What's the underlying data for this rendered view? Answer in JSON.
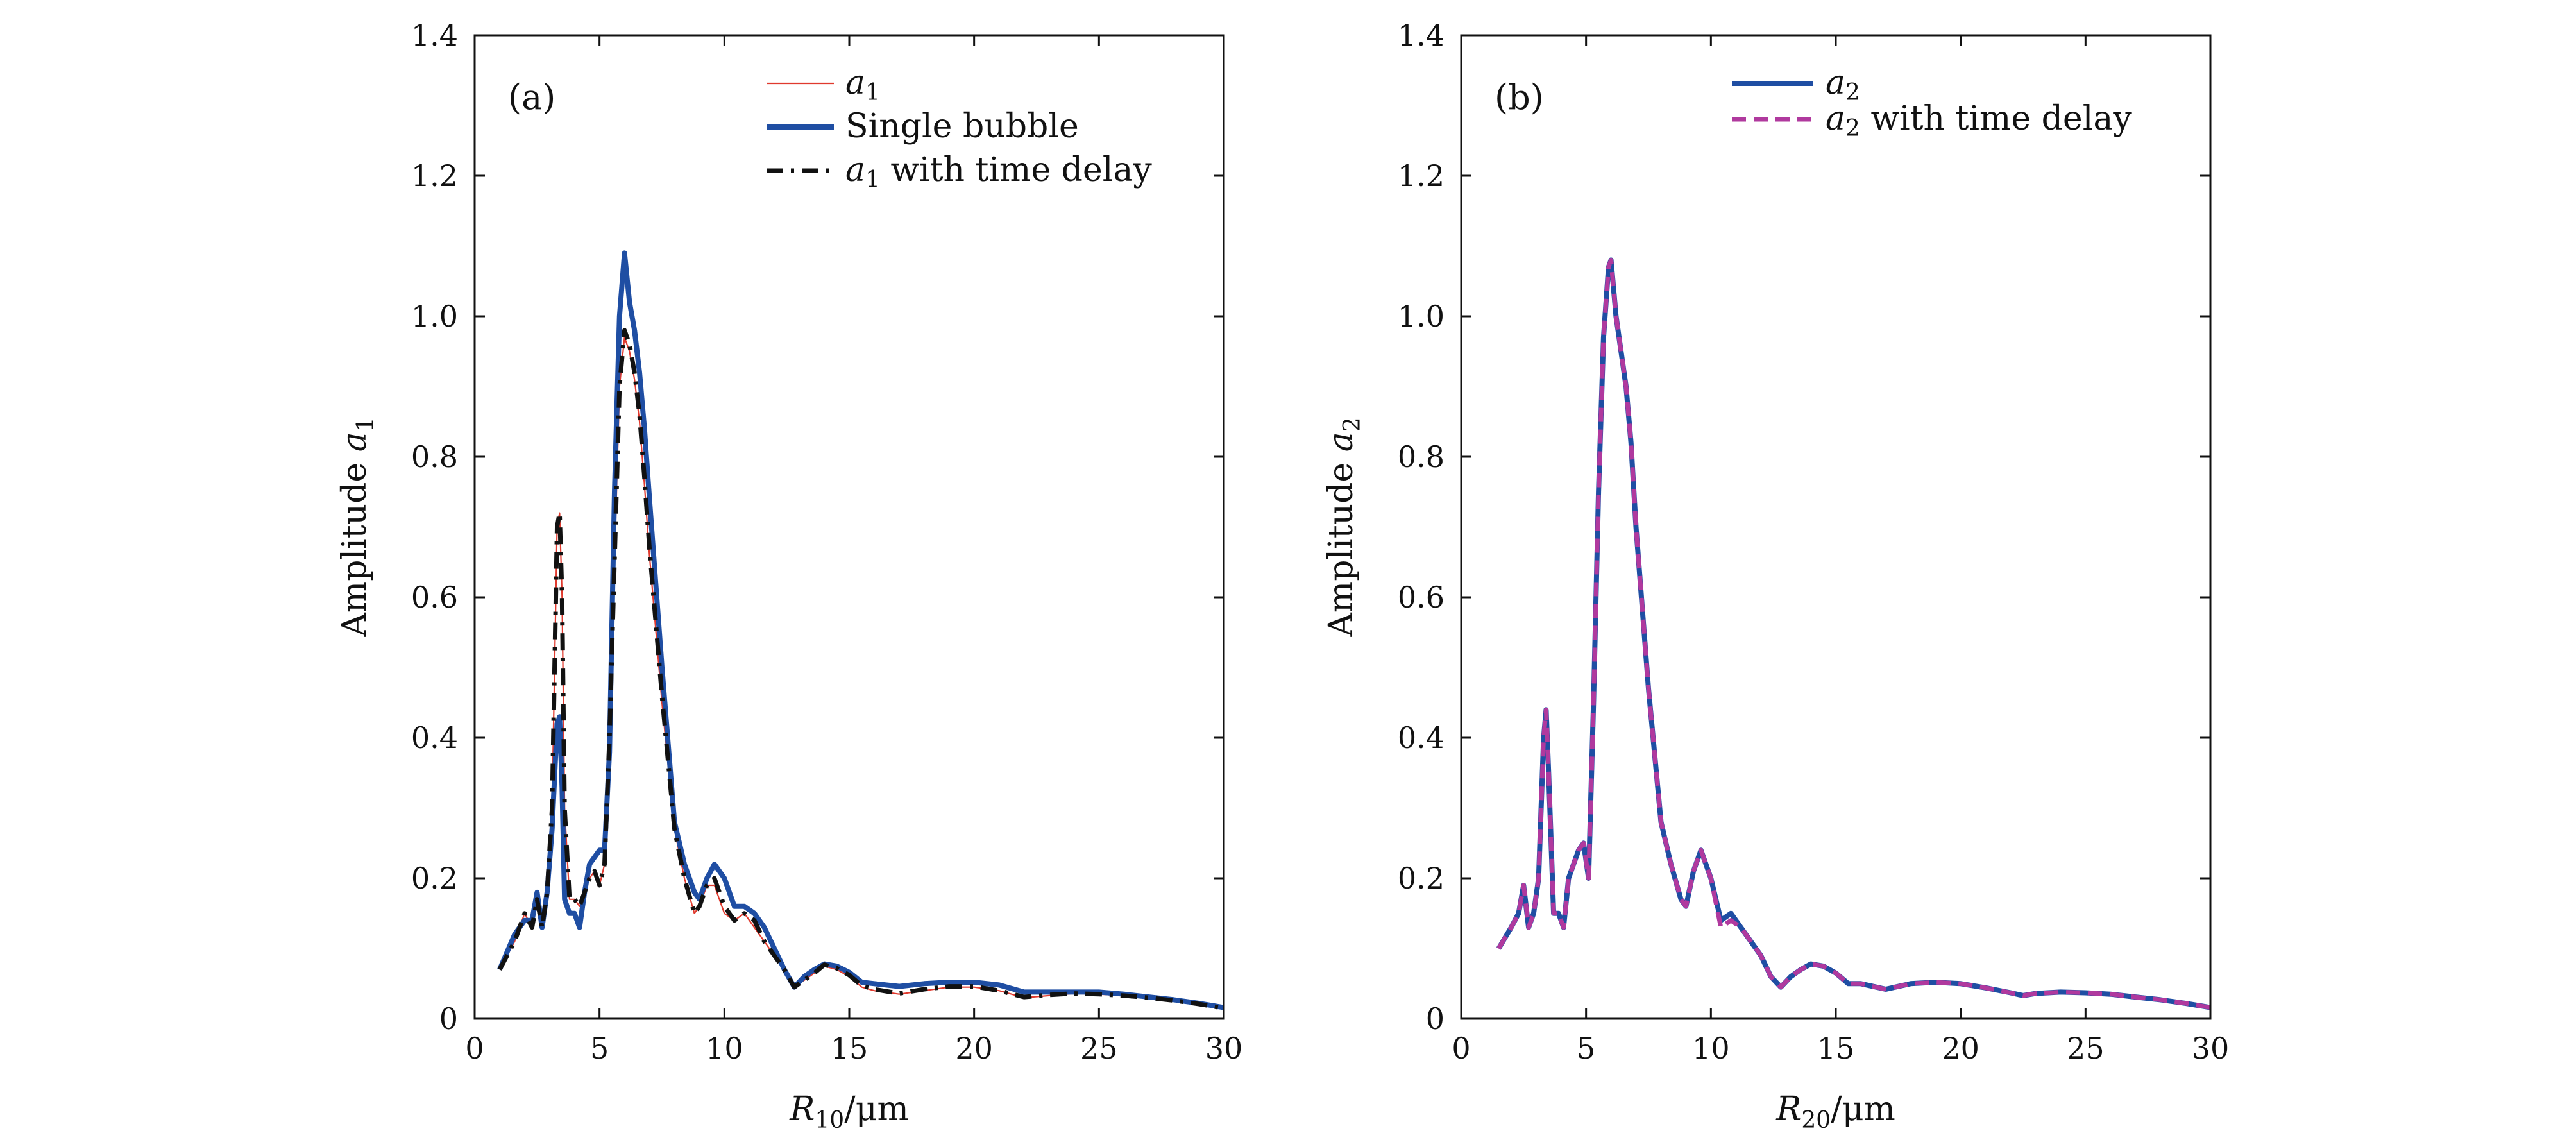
{
  "chart_data": [
    {
      "type": "line",
      "panel_label": "(a)",
      "xlabel": "R10/μm",
      "xlabel_base": "R",
      "xlabel_sub": "10",
      "xlabel_unit": "/μm",
      "ylabel": "Amplitude a1",
      "ylabel_text": "Amplitude ",
      "ylabel_var": "a",
      "ylabel_sub": "1",
      "xlim": [
        0,
        30
      ],
      "ylim": [
        0,
        1.4
      ],
      "xticks": [
        0,
        5,
        10,
        15,
        20,
        25,
        30
      ],
      "yticks": [
        0,
        0.2,
        0.4,
        0.6,
        0.8,
        1.0,
        1.2,
        1.4
      ],
      "xtick_labels": [
        "0",
        "5",
        "10",
        "15",
        "20",
        "25",
        "30"
      ],
      "ytick_labels": [
        "0",
        "0.2",
        "0.4",
        "0.6",
        "0.8",
        "1.0",
        "1.2",
        "1.4"
      ],
      "legend_position": "top-center",
      "grid": false,
      "series": [
        {
          "name": "a1",
          "legend_var": "a",
          "legend_sub": "1",
          "legend_rest": "",
          "color": "#e03a2e",
          "style": "thin",
          "x": [
            1.0,
            1.6,
            2.0,
            2.3,
            2.5,
            2.7,
            2.9,
            3.1,
            3.3,
            3.4,
            3.5,
            3.6,
            3.8,
            4.0,
            4.2,
            4.4,
            4.6,
            4.8,
            5.0,
            5.2,
            5.4,
            5.6,
            5.8,
            6.0,
            6.2,
            6.4,
            6.6,
            6.8,
            7.0,
            7.5,
            8.0,
            8.4,
            8.8,
            9.0,
            9.3,
            9.6,
            10.0,
            10.4,
            10.8,
            11.2,
            11.6,
            12.0,
            12.4,
            12.8,
            13.2,
            13.6,
            14.0,
            14.5,
            15.0,
            15.5,
            16.0,
            17.0,
            18.0,
            19.0,
            20.0,
            21.0,
            22.0,
            23.0,
            24.0,
            25.0,
            26.0,
            27.0,
            28.0,
            29.0,
            30.0
          ],
          "y": [
            0.07,
            0.11,
            0.15,
            0.13,
            0.17,
            0.13,
            0.18,
            0.3,
            0.7,
            0.72,
            0.6,
            0.3,
            0.17,
            0.17,
            0.16,
            0.18,
            0.2,
            0.21,
            0.19,
            0.22,
            0.4,
            0.65,
            0.9,
            0.97,
            0.95,
            0.91,
            0.85,
            0.76,
            0.66,
            0.45,
            0.27,
            0.2,
            0.15,
            0.16,
            0.19,
            0.19,
            0.15,
            0.14,
            0.15,
            0.13,
            0.11,
            0.09,
            0.07,
            0.045,
            0.055,
            0.065,
            0.075,
            0.07,
            0.06,
            0.045,
            0.04,
            0.035,
            0.04,
            0.045,
            0.045,
            0.04,
            0.03,
            0.033,
            0.036,
            0.035,
            0.033,
            0.03,
            0.026,
            0.022,
            0.015
          ]
        },
        {
          "name": "Single bubble",
          "legend_var": "",
          "legend_sub": "",
          "legend_rest": "Single bubble",
          "color": "#1f4ea3",
          "style": "solid",
          "x": [
            1.0,
            1.6,
            2.0,
            2.3,
            2.5,
            2.7,
            2.9,
            3.1,
            3.3,
            3.4,
            3.5,
            3.6,
            3.8,
            4.0,
            4.2,
            4.4,
            4.6,
            4.8,
            5.0,
            5.2,
            5.4,
            5.6,
            5.8,
            6.0,
            6.2,
            6.4,
            6.6,
            6.8,
            7.0,
            7.5,
            8.0,
            8.4,
            8.8,
            9.0,
            9.3,
            9.6,
            10.0,
            10.4,
            10.8,
            11.2,
            11.6,
            12.0,
            12.4,
            12.8,
            13.2,
            13.6,
            14.0,
            14.5,
            15.0,
            15.5,
            16.0,
            17.0,
            18.0,
            19.0,
            20.0,
            21.0,
            22.0,
            23.0,
            24.0,
            25.0,
            26.0,
            27.0,
            28.0,
            29.0,
            30.0
          ],
          "y": [
            0.07,
            0.12,
            0.14,
            0.14,
            0.18,
            0.13,
            0.18,
            0.27,
            0.42,
            0.43,
            0.33,
            0.17,
            0.15,
            0.15,
            0.13,
            0.18,
            0.22,
            0.23,
            0.24,
            0.24,
            0.38,
            0.75,
            1.0,
            1.09,
            1.02,
            0.98,
            0.92,
            0.84,
            0.74,
            0.5,
            0.28,
            0.22,
            0.18,
            0.17,
            0.2,
            0.22,
            0.2,
            0.16,
            0.16,
            0.15,
            0.13,
            0.1,
            0.07,
            0.045,
            0.06,
            0.07,
            0.078,
            0.075,
            0.066,
            0.052,
            0.05,
            0.046,
            0.05,
            0.052,
            0.052,
            0.048,
            0.038,
            0.038,
            0.038,
            0.038,
            0.035,
            0.031,
            0.027,
            0.022,
            0.016
          ]
        },
        {
          "name": "a1 with time delay",
          "legend_var": "a",
          "legend_sub": "1",
          "legend_rest": " with time delay",
          "color": "#111111",
          "style": "dashdot",
          "x": [
            1.0,
            1.6,
            2.0,
            2.3,
            2.5,
            2.7,
            2.9,
            3.1,
            3.3,
            3.4,
            3.5,
            3.6,
            3.8,
            4.0,
            4.2,
            4.4,
            4.6,
            4.8,
            5.0,
            5.2,
            5.4,
            5.6,
            5.8,
            6.0,
            6.2,
            6.4,
            6.6,
            6.8,
            7.0,
            7.5,
            8.0,
            8.4,
            8.8,
            9.0,
            9.3,
            9.6,
            10.0,
            10.4,
            10.8,
            11.2,
            11.6,
            12.0,
            12.4,
            12.8,
            13.2,
            13.6,
            14.0,
            14.5,
            15.0,
            15.5,
            16.0,
            17.0,
            18.0,
            19.0,
            20.0,
            21.0,
            22.0,
            23.0,
            24.0,
            25.0,
            26.0,
            27.0,
            28.0,
            29.0,
            30.0
          ],
          "y": [
            0.07,
            0.11,
            0.15,
            0.13,
            0.17,
            0.13,
            0.18,
            0.3,
            0.7,
            0.72,
            0.6,
            0.3,
            0.17,
            0.17,
            0.16,
            0.18,
            0.2,
            0.21,
            0.19,
            0.22,
            0.4,
            0.65,
            0.9,
            0.98,
            0.96,
            0.92,
            0.86,
            0.77,
            0.67,
            0.46,
            0.27,
            0.2,
            0.15,
            0.16,
            0.19,
            0.2,
            0.16,
            0.14,
            0.15,
            0.14,
            0.11,
            0.09,
            0.07,
            0.045,
            0.055,
            0.065,
            0.077,
            0.072,
            0.062,
            0.047,
            0.042,
            0.036,
            0.042,
            0.046,
            0.046,
            0.04,
            0.031,
            0.034,
            0.036,
            0.035,
            0.033,
            0.03,
            0.026,
            0.021,
            0.015
          ]
        }
      ]
    },
    {
      "type": "line",
      "panel_label": "(b)",
      "xlabel": "R20/μm",
      "xlabel_base": "R",
      "xlabel_sub": "20",
      "xlabel_unit": "/μm",
      "ylabel": "Amplitude a2",
      "ylabel_text": "Amplitude ",
      "ylabel_var": "a",
      "ylabel_sub": "2",
      "xlim": [
        0,
        30
      ],
      "ylim": [
        0,
        1.4
      ],
      "xticks": [
        0,
        5,
        10,
        15,
        20,
        25,
        30
      ],
      "yticks": [
        0,
        0.2,
        0.4,
        0.6,
        0.8,
        1.0,
        1.2,
        1.4
      ],
      "xtick_labels": [
        "0",
        "5",
        "10",
        "15",
        "20",
        "25",
        "30"
      ],
      "ytick_labels": [
        "0",
        "0.2",
        "0.4",
        "0.6",
        "0.8",
        "1.0",
        "1.2",
        "1.4"
      ],
      "legend_position": "top-center",
      "grid": false,
      "series": [
        {
          "name": "a2",
          "legend_var": "a",
          "legend_sub": "2",
          "legend_rest": "",
          "color": "#1f4ea3",
          "style": "solid",
          "x": [
            1.5,
            2.0,
            2.3,
            2.5,
            2.7,
            2.9,
            3.1,
            3.3,
            3.4,
            3.5,
            3.7,
            3.9,
            4.1,
            4.3,
            4.5,
            4.7,
            4.9,
            5.1,
            5.3,
            5.5,
            5.7,
            5.9,
            6.0,
            6.2,
            6.4,
            6.6,
            6.8,
            7.0,
            7.5,
            8.0,
            8.4,
            8.8,
            9.0,
            9.3,
            9.6,
            10.0,
            10.4,
            10.8,
            11.2,
            11.6,
            12.0,
            12.4,
            12.8,
            13.2,
            13.6,
            14.0,
            14.5,
            15.0,
            15.5,
            16.0,
            17.0,
            18.0,
            19.0,
            20.0,
            21.0,
            22.0,
            22.5,
            23.0,
            24.0,
            25.0,
            26.0,
            27.0,
            28.0,
            29.0,
            30.0
          ],
          "y": [
            0.1,
            0.13,
            0.15,
            0.19,
            0.13,
            0.15,
            0.2,
            0.4,
            0.44,
            0.35,
            0.15,
            0.15,
            0.13,
            0.2,
            0.22,
            0.24,
            0.25,
            0.2,
            0.45,
            0.75,
            0.97,
            1.07,
            1.08,
            1.0,
            0.95,
            0.9,
            0.82,
            0.7,
            0.47,
            0.28,
            0.22,
            0.17,
            0.16,
            0.21,
            0.24,
            0.2,
            0.14,
            0.15,
            0.13,
            0.11,
            0.09,
            0.06,
            0.045,
            0.06,
            0.07,
            0.078,
            0.075,
            0.065,
            0.05,
            0.05,
            0.042,
            0.05,
            0.052,
            0.05,
            0.044,
            0.037,
            0.033,
            0.036,
            0.038,
            0.037,
            0.035,
            0.031,
            0.027,
            0.022,
            0.016
          ]
        },
        {
          "name": "a2 with time delay",
          "legend_var": "a",
          "legend_sub": "2",
          "legend_rest": " with time delay",
          "color": "#b0399e",
          "style": "dashed",
          "x": [
            1.5,
            2.0,
            2.3,
            2.5,
            2.7,
            2.9,
            3.1,
            3.3,
            3.4,
            3.5,
            3.7,
            3.9,
            4.1,
            4.3,
            4.5,
            4.7,
            4.9,
            5.1,
            5.3,
            5.5,
            5.7,
            5.9,
            6.0,
            6.2,
            6.4,
            6.6,
            6.8,
            7.0,
            7.5,
            8.0,
            8.4,
            8.8,
            9.0,
            9.3,
            9.6,
            10.0,
            10.4,
            10.8,
            11.2,
            11.6,
            12.0,
            12.4,
            12.8,
            13.2,
            13.6,
            14.0,
            14.5,
            15.0,
            15.5,
            16.0,
            17.0,
            18.0,
            19.0,
            20.0,
            21.0,
            22.0,
            22.5,
            23.0,
            24.0,
            25.0,
            26.0,
            27.0,
            28.0,
            29.0,
            30.0
          ],
          "y": [
            0.1,
            0.13,
            0.15,
            0.19,
            0.13,
            0.15,
            0.2,
            0.4,
            0.44,
            0.35,
            0.15,
            0.15,
            0.13,
            0.2,
            0.22,
            0.24,
            0.25,
            0.2,
            0.45,
            0.75,
            0.97,
            1.07,
            1.08,
            1.0,
            0.95,
            0.9,
            0.82,
            0.7,
            0.47,
            0.28,
            0.22,
            0.17,
            0.16,
            0.21,
            0.24,
            0.2,
            0.13,
            0.14,
            0.13,
            0.11,
            0.09,
            0.06,
            0.045,
            0.06,
            0.07,
            0.078,
            0.075,
            0.065,
            0.05,
            0.05,
            0.042,
            0.05,
            0.052,
            0.05,
            0.044,
            0.037,
            0.033,
            0.036,
            0.038,
            0.037,
            0.035,
            0.031,
            0.027,
            0.022,
            0.016
          ]
        }
      ]
    }
  ]
}
